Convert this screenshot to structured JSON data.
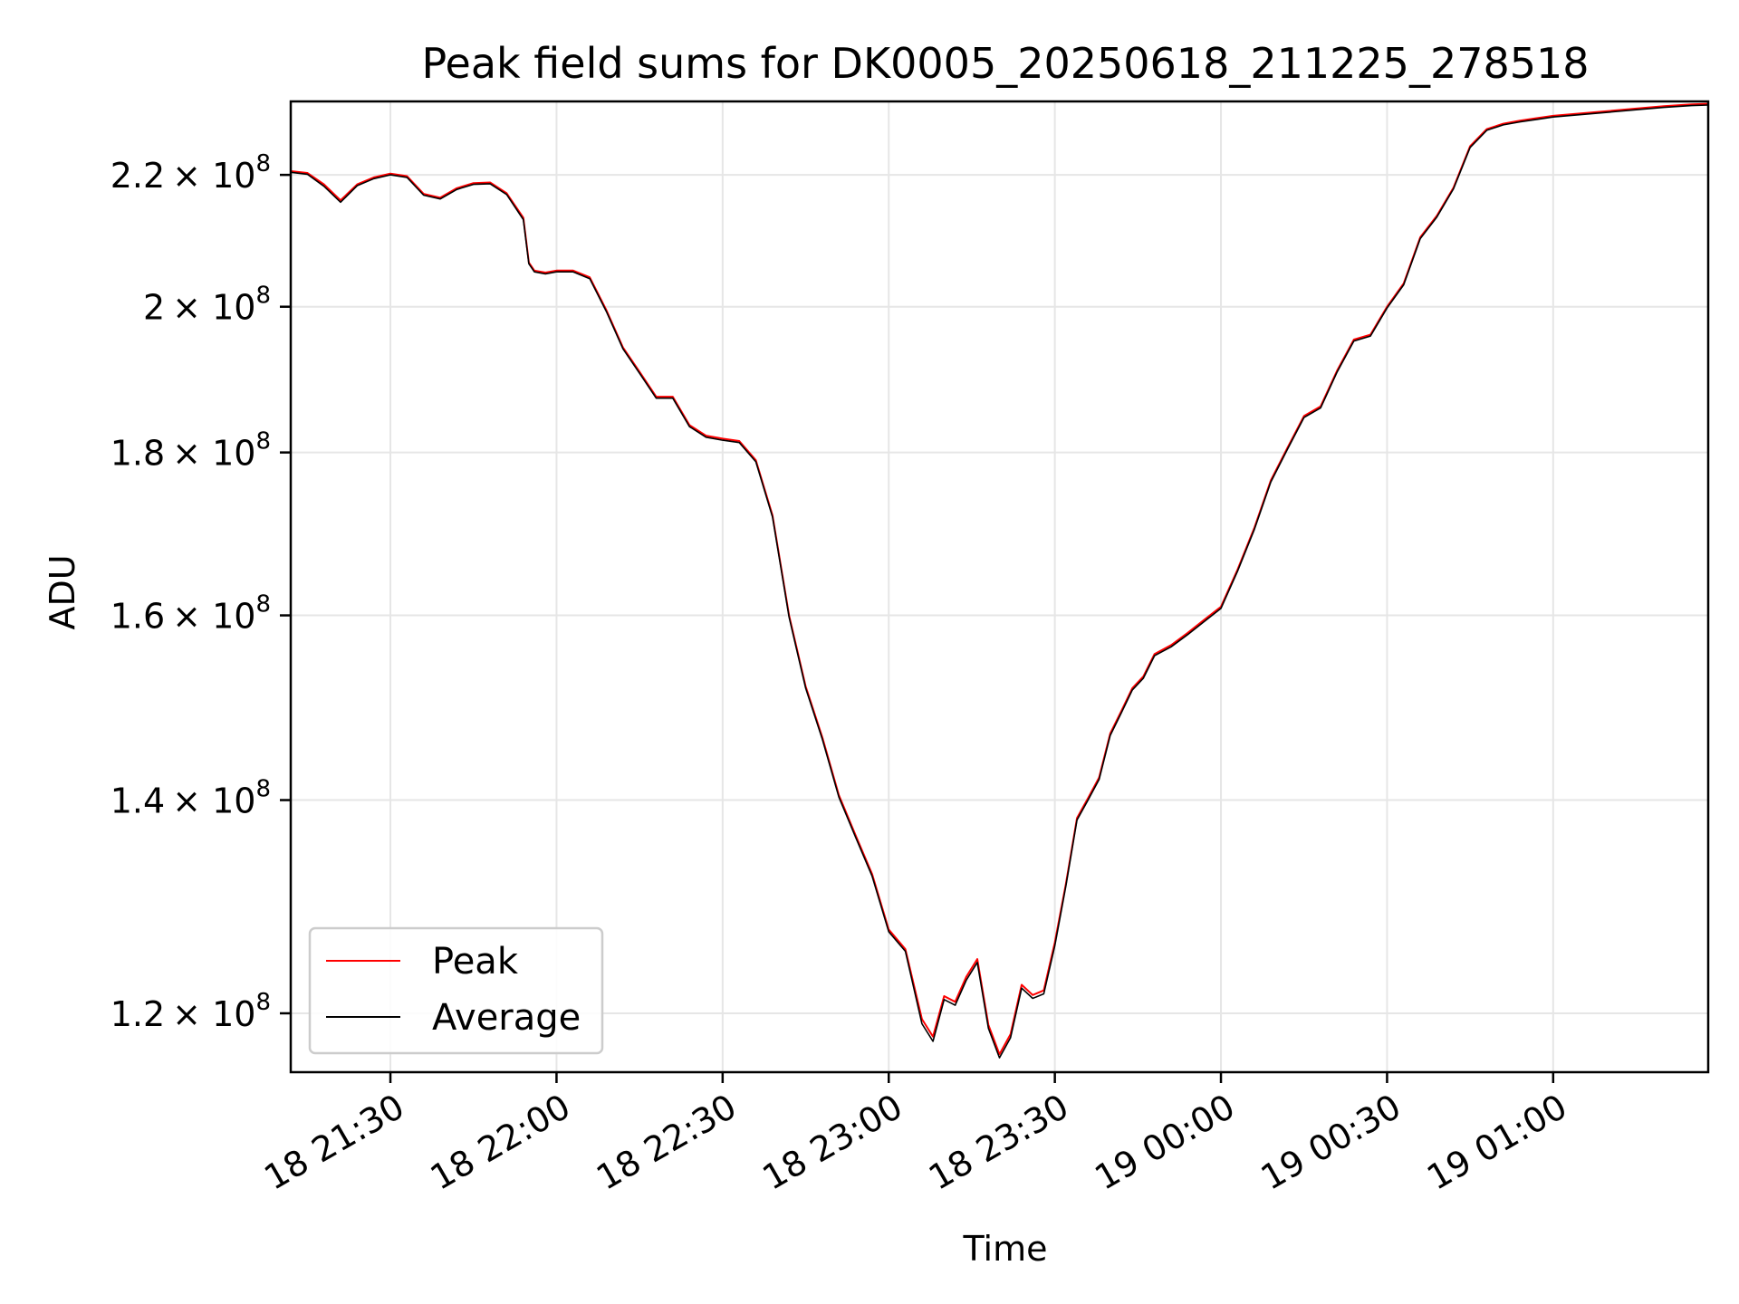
{
  "chart_data": {
    "type": "line",
    "title": "Peak field sums for DK0005_20250618_211225_278518",
    "xlabel": "Time",
    "ylabel": "ADU",
    "x_axis_type": "datetime",
    "x_range": [
      "2025-06-18 21:12",
      "2025-06-19 01:28"
    ],
    "y_scale": "log",
    "ylim": [
      115000000,
      232000000
    ],
    "grid": true,
    "legend_position": "lower-left",
    "x_ticks": [
      {
        "value": "2025-06-18 21:30",
        "label": "18 21:30"
      },
      {
        "value": "2025-06-18 22:00",
        "label": "18 22:00"
      },
      {
        "value": "2025-06-18 22:30",
        "label": "18 22:30"
      },
      {
        "value": "2025-06-18 23:00",
        "label": "18 23:00"
      },
      {
        "value": "2025-06-18 23:30",
        "label": "18 23:30"
      },
      {
        "value": "2025-06-19 00:00",
        "label": "19 00:00"
      },
      {
        "value": "2025-06-19 00:30",
        "label": "19 00:30"
      },
      {
        "value": "2025-06-19 01:00",
        "label": "19 01:00"
      }
    ],
    "y_ticks": [
      {
        "value": 120000000,
        "mantissa": "1.2",
        "base": "× 10",
        "exp": "8"
      },
      {
        "value": 140000000,
        "mantissa": "1.4",
        "base": "× 10",
        "exp": "8"
      },
      {
        "value": 160000000,
        "mantissa": "1.6",
        "base": "× 10",
        "exp": "8"
      },
      {
        "value": 180000000,
        "mantissa": "1.8",
        "base": "× 10",
        "exp": "8"
      },
      {
        "value": 200000000,
        "mantissa": "2",
        "base": "× 10",
        "exp": "8"
      },
      {
        "value": 220000000,
        "mantissa": "2.2",
        "base": "× 10",
        "exp": "8"
      }
    ],
    "x": [
      "2025-06-18 21:12",
      "2025-06-18 21:15",
      "2025-06-18 21:18",
      "2025-06-18 21:21",
      "2025-06-18 21:24",
      "2025-06-18 21:27",
      "2025-06-18 21:30",
      "2025-06-18 21:33",
      "2025-06-18 21:36",
      "2025-06-18 21:39",
      "2025-06-18 21:42",
      "2025-06-18 21:45",
      "2025-06-18 21:48",
      "2025-06-18 21:51",
      "2025-06-18 21:54",
      "2025-06-18 21:55",
      "2025-06-18 21:56",
      "2025-06-18 21:58",
      "2025-06-18 22:00",
      "2025-06-18 22:03",
      "2025-06-18 22:06",
      "2025-06-18 22:09",
      "2025-06-18 22:12",
      "2025-06-18 22:15",
      "2025-06-18 22:18",
      "2025-06-18 22:21",
      "2025-06-18 22:24",
      "2025-06-18 22:27",
      "2025-06-18 22:30",
      "2025-06-18 22:33",
      "2025-06-18 22:36",
      "2025-06-18 22:39",
      "2025-06-18 22:42",
      "2025-06-18 22:45",
      "2025-06-18 22:48",
      "2025-06-18 22:51",
      "2025-06-18 22:54",
      "2025-06-18 22:57",
      "2025-06-18 23:00",
      "2025-06-18 23:03",
      "2025-06-18 23:06",
      "2025-06-18 23:08",
      "2025-06-18 23:10",
      "2025-06-18 23:12",
      "2025-06-18 23:14",
      "2025-06-18 23:16",
      "2025-06-18 23:18",
      "2025-06-18 23:20",
      "2025-06-18 23:22",
      "2025-06-18 23:24",
      "2025-06-18 23:26",
      "2025-06-18 23:28",
      "2025-06-18 23:30",
      "2025-06-18 23:32",
      "2025-06-18 23:34",
      "2025-06-18 23:36",
      "2025-06-18 23:38",
      "2025-06-18 23:40",
      "2025-06-18 23:42",
      "2025-06-18 23:44",
      "2025-06-18 23:46",
      "2025-06-18 23:48",
      "2025-06-18 23:51",
      "2025-06-18 23:54",
      "2025-06-18 23:57",
      "2025-06-19 00:00",
      "2025-06-19 00:03",
      "2025-06-19 00:06",
      "2025-06-19 00:09",
      "2025-06-19 00:12",
      "2025-06-19 00:15",
      "2025-06-19 00:18",
      "2025-06-19 00:21",
      "2025-06-19 00:24",
      "2025-06-19 00:27",
      "2025-06-19 00:30",
      "2025-06-19 00:33",
      "2025-06-19 00:36",
      "2025-06-19 00:39",
      "2025-06-19 00:42",
      "2025-06-19 00:45",
      "2025-06-19 00:48",
      "2025-06-19 00:51",
      "2025-06-19 00:54",
      "2025-06-19 00:57",
      "2025-06-19 01:00",
      "2025-06-19 01:05",
      "2025-06-19 01:10",
      "2025-06-19 01:15",
      "2025-06-19 01:20",
      "2025-06-19 01:25",
      "2025-06-19 01:28"
    ],
    "series": [
      {
        "name": "Peak",
        "color": "#ff0000",
        "values": [
          220600000,
          220300000,
          218500000,
          216000000,
          218500000,
          219600000,
          220200000,
          219800000,
          217000000,
          216400000,
          217900000,
          218700000,
          218800000,
          217100000,
          213300000,
          206500000,
          205300000,
          205000000,
          205300000,
          205300000,
          204300000,
          199500000,
          194200000,
          190800000,
          187400000,
          187400000,
          183600000,
          182200000,
          181800000,
          181500000,
          179000000,
          172000000,
          160000000,
          152000000,
          146500000,
          140500000,
          136500000,
          132700000,
          127500000,
          125700000,
          119500000,
          118000000,
          121500000,
          121000000,
          123200000,
          124800000,
          119000000,
          116500000,
          118200000,
          122500000,
          121600000,
          122000000,
          126300000,
          131800000,
          138200000,
          140200000,
          142300000,
          146900000,
          149300000,
          151800000,
          153100000,
          155600000,
          156600000,
          158000000,
          159500000,
          161000000,
          165400000,
          170400000,
          176400000,
          180600000,
          184800000,
          186100000,
          191000000,
          195300000,
          196000000,
          200000000,
          203400000,
          210300000,
          213600000,
          218000000,
          224600000,
          227400000,
          228300000,
          228800000,
          229200000,
          229600000,
          230000000,
          230400000,
          230800000,
          231200000,
          231500000,
          231600000
        ]
      },
      {
        "name": "Average",
        "color": "#000000",
        "values": [
          220400000,
          220100000,
          218200000,
          215700000,
          218300000,
          219400000,
          220000000,
          219600000,
          216800000,
          216200000,
          217700000,
          218500000,
          218600000,
          216900000,
          213000000,
          206300000,
          205100000,
          204800000,
          205100000,
          205100000,
          204100000,
          199300000,
          194000000,
          190600000,
          187200000,
          187200000,
          183400000,
          182000000,
          181600000,
          181300000,
          178800000,
          171800000,
          159800000,
          151800000,
          146300000,
          140300000,
          136300000,
          132500000,
          127300000,
          125500000,
          119100000,
          117600000,
          121200000,
          120700000,
          122900000,
          124500000,
          118700000,
          116200000,
          117900000,
          122200000,
          121300000,
          121700000,
          126000000,
          131600000,
          138000000,
          140000000,
          142100000,
          146700000,
          149100000,
          151600000,
          152900000,
          155400000,
          156400000,
          157800000,
          159300000,
          160800000,
          165200000,
          170200000,
          176200000,
          180400000,
          184600000,
          185900000,
          190800000,
          195100000,
          195800000,
          199800000,
          203200000,
          210100000,
          213400000,
          217800000,
          224400000,
          227200000,
          228100000,
          228600000,
          229000000,
          229400000,
          229800000,
          230200000,
          230600000,
          231000000,
          231300000,
          231400000
        ]
      }
    ]
  }
}
